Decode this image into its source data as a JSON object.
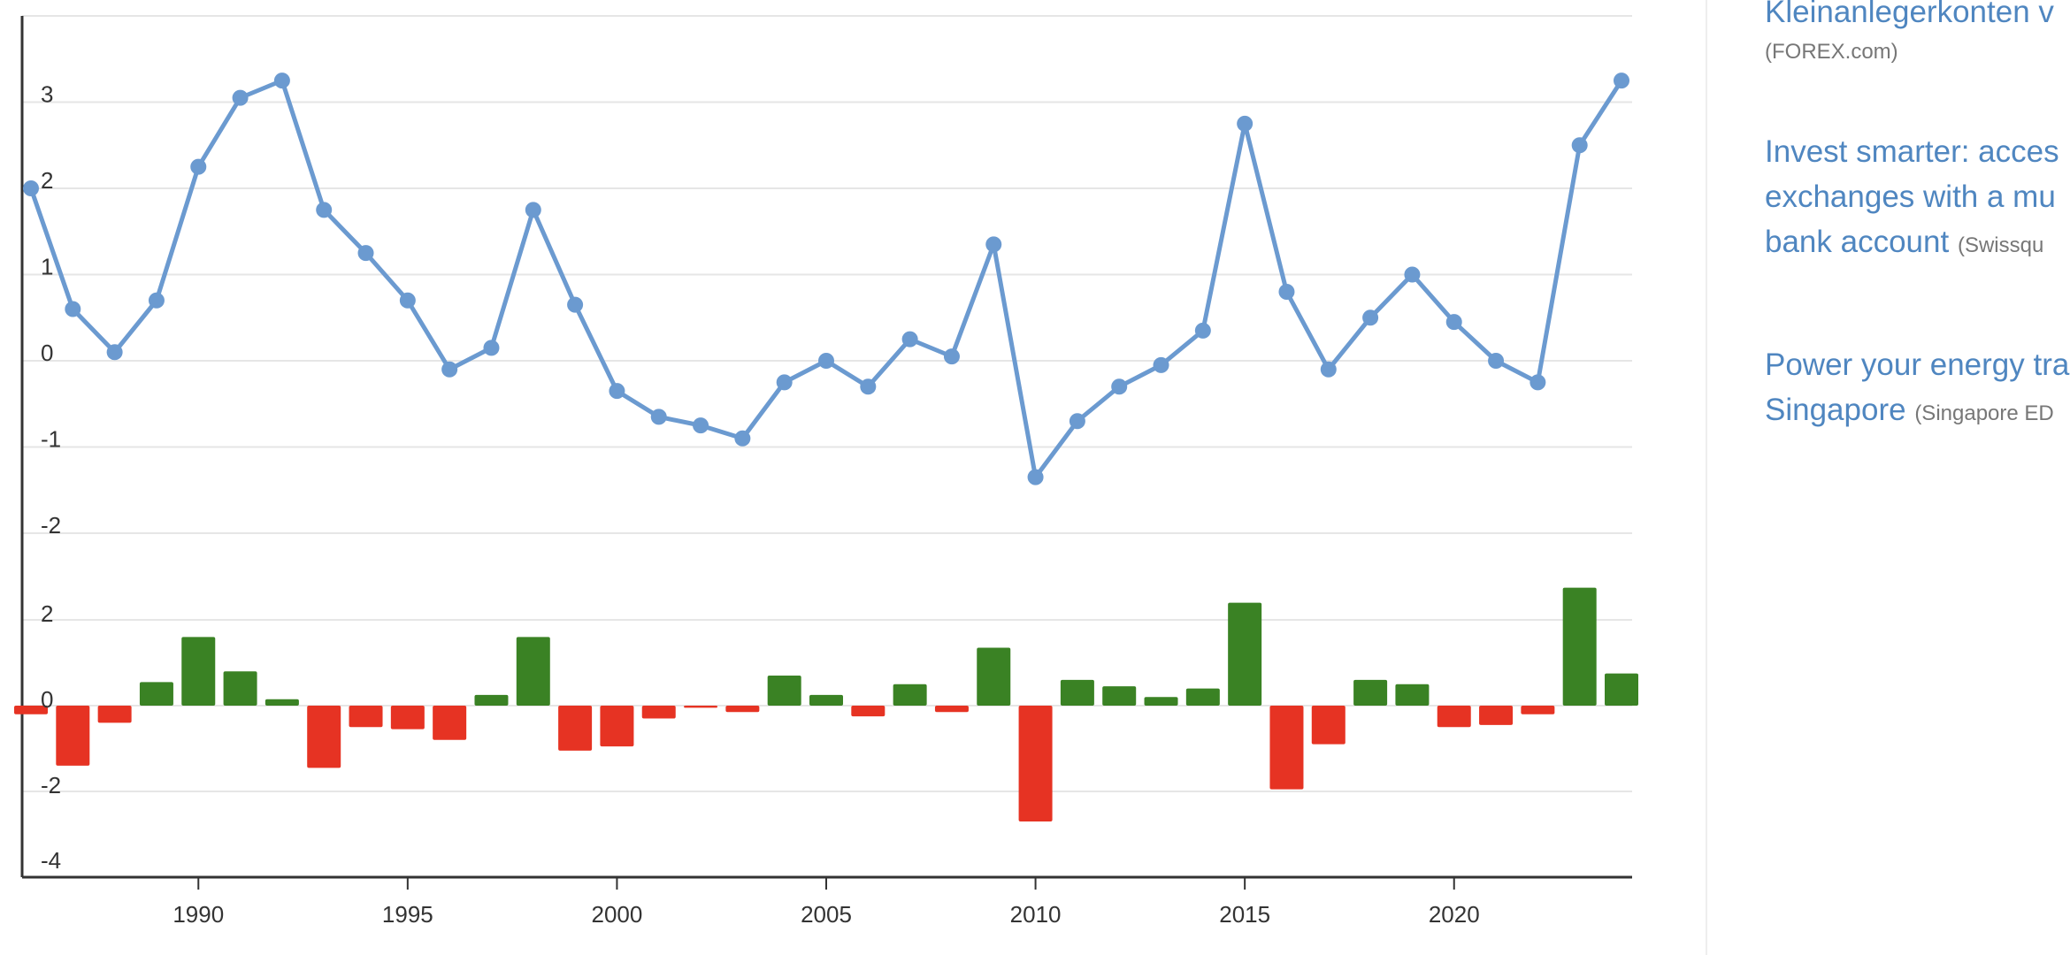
{
  "chart_data": [
    {
      "type": "line",
      "x": [
        1986,
        1987,
        1988,
        1989,
        1990,
        1991,
        1992,
        1993,
        1994,
        1995,
        1996,
        1997,
        1998,
        1999,
        2000,
        2001,
        2002,
        2003,
        2004,
        2005,
        2006,
        2007,
        2008,
        2009,
        2010,
        2011,
        2012,
        2013,
        2014,
        2015,
        2016,
        2017,
        2018,
        2019,
        2020,
        2021,
        2022,
        2023,
        2024
      ],
      "series": [
        {
          "values": [
            2.0,
            0.6,
            0.1,
            0.7,
            2.25,
            3.05,
            3.25,
            1.75,
            1.25,
            0.7,
            -0.1,
            0.15,
            1.75,
            0.65,
            -0.35,
            -0.65,
            -0.75,
            -0.9,
            -0.25,
            0.0,
            -0.3,
            0.25,
            0.05,
            1.35,
            -1.35,
            -0.7,
            -0.3,
            -0.05,
            0.35,
            2.75,
            0.8,
            -0.1,
            0.5,
            1.0,
            0.45,
            0.0,
            -0.25,
            2.5,
            3.25
          ],
          "color": "#6b9ad0"
        }
      ],
      "yticks": [
        -2,
        -1,
        0,
        1,
        2,
        3
      ],
      "ylim": [
        -2.5,
        4
      ],
      "grid": true
    },
    {
      "type": "bar",
      "x": [
        1986,
        1987,
        1988,
        1989,
        1990,
        1991,
        1992,
        1993,
        1994,
        1995,
        1996,
        1997,
        1998,
        1999,
        2000,
        2001,
        2002,
        2003,
        2004,
        2005,
        2006,
        2007,
        2008,
        2009,
        2010,
        2011,
        2012,
        2013,
        2014,
        2015,
        2016,
        2017,
        2018,
        2019,
        2020,
        2021,
        2022,
        2023,
        2024
      ],
      "values": [
        -0.2,
        -1.4,
        -0.4,
        0.55,
        1.6,
        0.8,
        0.15,
        -1.45,
        -0.5,
        -0.55,
        -0.8,
        0.25,
        1.6,
        -1.05,
        -0.95,
        -0.3,
        -0.05,
        -0.15,
        0.7,
        0.25,
        -0.25,
        0.5,
        -0.15,
        1.35,
        -2.7,
        0.6,
        0.45,
        0.2,
        0.4,
        2.4,
        -1.95,
        -0.9,
        0.6,
        0.5,
        -0.5,
        -0.45,
        -0.2,
        2.75,
        0.75
      ],
      "positive_color": "#3a8224",
      "negative_color": "#e63323",
      "yticks": [
        -4,
        -2,
        0,
        2
      ],
      "ylim": [
        -4,
        4
      ],
      "xticks": [
        "1990",
        "1995",
        "2000",
        "2005",
        "2010",
        "2015",
        "2020"
      ],
      "grid": true
    }
  ],
  "sidebar": {
    "ads": [
      {
        "lines": [
          "Kleinanlegerkonten v"
        ],
        "source": "(FOREX.com)",
        "source_own_line": true
      },
      {
        "lines": [
          "Invest smarter: acces",
          "exchanges with a mu",
          "bank account"
        ],
        "source": "(Swissqu",
        "source_own_line": false
      },
      {
        "lines": [
          "Power your energy tra",
          "Singapore"
        ],
        "source": "(Singapore ED",
        "source_own_line": false
      }
    ]
  }
}
